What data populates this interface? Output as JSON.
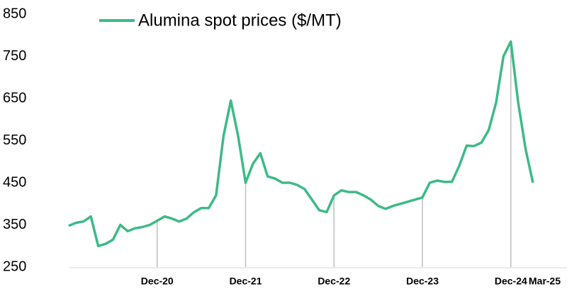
{
  "chart_data": {
    "type": "line",
    "legend": "Alumina spot prices ($/MT)",
    "color": "#3dba86",
    "categories": [
      null,
      null,
      null,
      null,
      null,
      null,
      null,
      null,
      null,
      null,
      null,
      null,
      "Dec-20",
      null,
      null,
      null,
      null,
      null,
      null,
      null,
      null,
      null,
      null,
      null,
      "Dec-21",
      null,
      null,
      null,
      null,
      null,
      null,
      null,
      null,
      null,
      null,
      null,
      "Dec-22",
      null,
      null,
      null,
      null,
      null,
      null,
      null,
      null,
      null,
      null,
      null,
      "Dec-23",
      null,
      null,
      null,
      null,
      null,
      null,
      null,
      null,
      null,
      null,
      null,
      "Dec-24",
      null,
      null,
      "Mar-25"
    ],
    "values": [
      348,
      355,
      358,
      370,
      300,
      305,
      315,
      350,
      335,
      342,
      345,
      350,
      360,
      370,
      365,
      358,
      365,
      380,
      390,
      390,
      420,
      560,
      645,
      560,
      450,
      495,
      520,
      465,
      460,
      450,
      450,
      445,
      435,
      410,
      385,
      380,
      420,
      432,
      428,
      428,
      420,
      410,
      395,
      388,
      395,
      400,
      405,
      410,
      415,
      450,
      455,
      452,
      452,
      490,
      538,
      537,
      545,
      575,
      640,
      750,
      785,
      640,
      530,
      450
    ],
    "ylim": [
      250,
      850
    ],
    "yticks": [
      250,
      350,
      450,
      550,
      650,
      750,
      850
    ]
  }
}
